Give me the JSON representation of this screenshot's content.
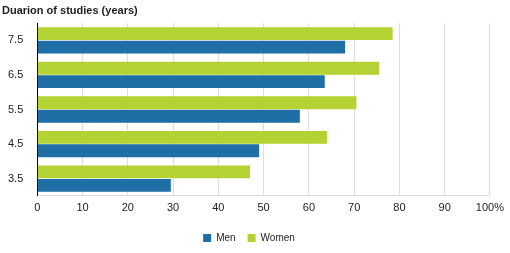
{
  "chart_data": {
    "type": "bar",
    "orientation": "horizontal",
    "ylabel": "Duarion of studies (years)",
    "categories": [
      "7.5",
      "6.5",
      "5.5",
      "4.5",
      "3.5"
    ],
    "series": [
      {
        "name": "Men",
        "color": "#1f6ea6",
        "values": [
          68,
          63.5,
          58,
          49,
          29.5
        ]
      },
      {
        "name": "Women",
        "color": "#b4d233",
        "values": [
          78.5,
          75.5,
          70.5,
          64,
          47
        ]
      }
    ],
    "xlim": [
      0,
      100
    ],
    "xticks": [
      0,
      10,
      20,
      30,
      40,
      50,
      60,
      70,
      80,
      90,
      {
        "value": 100,
        "label": "100%"
      }
    ],
    "grid": true,
    "legend": "bottom"
  }
}
